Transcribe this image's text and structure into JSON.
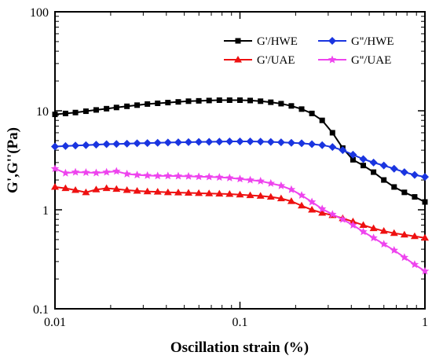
{
  "chart_data": {
    "type": "line",
    "xlabel": "Oscillation strain (%)",
    "ylabel": "G',G''(Pa)",
    "x_scale": "log",
    "y_scale": "log",
    "xlim": [
      0.01,
      1
    ],
    "ylim": [
      0.1,
      100
    ],
    "x_ticks": [
      {
        "value": 0.01,
        "label": "0.01"
      },
      {
        "value": 0.1,
        "label": "0.1"
      },
      {
        "value": 1,
        "label": "1"
      }
    ],
    "y_ticks": [
      {
        "value": 0.1,
        "label": "0.1"
      },
      {
        "value": 1,
        "label": "1"
      },
      {
        "value": 10,
        "label": "10"
      },
      {
        "value": 100,
        "label": "100"
      }
    ],
    "grid": false,
    "legend_position": "top-right",
    "x": [
      0.01,
      0.0114,
      0.0129,
      0.0147,
      0.0167,
      0.019,
      0.0215,
      0.0245,
      0.0278,
      0.0316,
      0.0359,
      0.0408,
      0.0464,
      0.0527,
      0.0599,
      0.0681,
      0.0774,
      0.0879,
      0.1,
      0.1136,
      0.1292,
      0.1468,
      0.1669,
      0.1896,
      0.2155,
      0.2449,
      0.2783,
      0.3163,
      0.3594,
      0.4084,
      0.4642,
      0.5275,
      0.5995,
      0.6813,
      0.7743,
      0.8799,
      1.0
    ],
    "series": [
      {
        "name": "G'/HWE",
        "color": "#000000",
        "marker": "square",
        "values": [
          9.2,
          9.4,
          9.6,
          9.9,
          10.2,
          10.5,
          10.8,
          11.1,
          11.4,
          11.7,
          11.9,
          12.1,
          12.3,
          12.5,
          12.6,
          12.7,
          12.8,
          12.8,
          12.8,
          12.7,
          12.5,
          12.2,
          11.8,
          11.2,
          10.4,
          9.4,
          8.0,
          6.0,
          4.2,
          3.2,
          2.8,
          2.4,
          2.0,
          1.7,
          1.5,
          1.35,
          1.2
        ]
      },
      {
        "name": "G''/HWE",
        "color": "#1a35e0",
        "marker": "diamond",
        "values": [
          4.35,
          4.4,
          4.45,
          4.5,
          4.55,
          4.6,
          4.62,
          4.65,
          4.7,
          4.72,
          4.75,
          4.78,
          4.8,
          4.82,
          4.85,
          4.86,
          4.88,
          4.9,
          4.9,
          4.9,
          4.88,
          4.85,
          4.8,
          4.75,
          4.7,
          4.6,
          4.5,
          4.3,
          4.0,
          3.6,
          3.25,
          3.0,
          2.8,
          2.6,
          2.4,
          2.25,
          2.15
        ]
      },
      {
        "name": "G'/UAE",
        "color": "#ee1111",
        "marker": "triangle",
        "values": [
          1.7,
          1.65,
          1.58,
          1.5,
          1.6,
          1.65,
          1.62,
          1.58,
          1.55,
          1.53,
          1.52,
          1.5,
          1.49,
          1.48,
          1.47,
          1.46,
          1.45,
          1.44,
          1.42,
          1.4,
          1.38,
          1.35,
          1.3,
          1.22,
          1.1,
          1.0,
          0.93,
          0.88,
          0.82,
          0.76,
          0.7,
          0.65,
          0.61,
          0.58,
          0.56,
          0.54,
          0.52
        ]
      },
      {
        "name": "G''/UAE",
        "color": "#ee44ee",
        "marker": "star",
        "values": [
          2.6,
          2.35,
          2.4,
          2.38,
          2.36,
          2.4,
          2.45,
          2.3,
          2.25,
          2.22,
          2.2,
          2.2,
          2.19,
          2.18,
          2.16,
          2.15,
          2.13,
          2.1,
          2.05,
          2.0,
          1.95,
          1.85,
          1.75,
          1.6,
          1.4,
          1.2,
          1.02,
          0.9,
          0.8,
          0.7,
          0.6,
          0.52,
          0.45,
          0.39,
          0.33,
          0.28,
          0.24
        ]
      }
    ]
  }
}
